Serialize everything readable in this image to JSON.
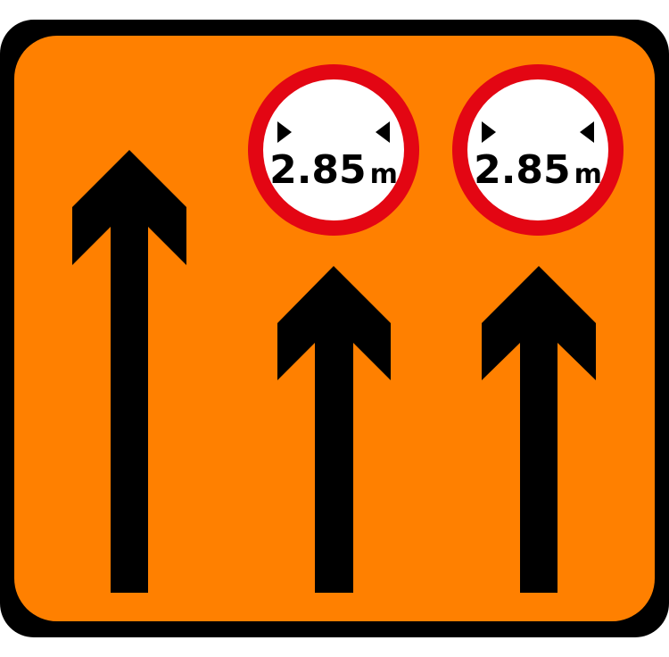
{
  "sign": {
    "type": "lane-restriction-sign",
    "border_color": "#000000",
    "background_color": "#FF8000",
    "arrow_color": "#000000",
    "lanes": [
      {
        "arrow_icon": "arrow-up-icon",
        "restriction": null
      },
      {
        "arrow_icon": "arrow-up-icon",
        "restriction": {
          "value": "2.85",
          "unit": "m",
          "ring_color": "#E30613",
          "fill_color": "#FFFFFF"
        }
      },
      {
        "arrow_icon": "arrow-up-icon",
        "restriction": {
          "value": "2.85",
          "unit": "m",
          "ring_color": "#E30613",
          "fill_color": "#FFFFFF"
        }
      }
    ]
  }
}
